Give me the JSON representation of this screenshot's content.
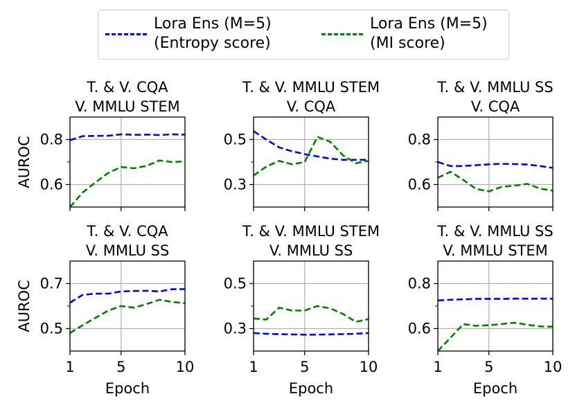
{
  "legend": {
    "entries": [
      {
        "line1": "Lora Ens (M=5)",
        "line2": "(Entropy score)",
        "color": "#0000ff"
      },
      {
        "line1": "Lora Ens (M=5)",
        "line2": "(MI score)",
        "color": "#008000"
      }
    ]
  },
  "chart_data": {
    "type": "line",
    "xlabel": "Epoch",
    "ylabel": "AUROC",
    "xlim": [
      1,
      10
    ],
    "x_ticks": [
      "1",
      "5",
      "10"
    ],
    "panels": [
      {
        "title_line1": "T. & V. CQA",
        "title_line2": "V. MMLU STEM",
        "ylim": [
          0.5,
          0.9
        ],
        "y_ticks": [
          0.6,
          0.8
        ],
        "y_tick_labels": [
          "0.6",
          "0.8"
        ],
        "y_minor": [
          0.7
        ],
        "x": [
          1,
          2,
          3,
          4,
          5,
          6,
          7,
          8,
          9,
          10
        ],
        "series": [
          {
            "color": "#0000ff",
            "values": [
              0.797,
              0.815,
              0.816,
              0.817,
              0.823,
              0.821,
              0.822,
              0.82,
              0.823,
              0.822
            ]
          },
          {
            "color": "#008000",
            "values": [
              0.5,
              0.565,
              0.61,
              0.652,
              0.678,
              0.672,
              0.683,
              0.707,
              0.7,
              0.703
            ]
          }
        ]
      },
      {
        "title_line1": "T. & V. MMLU STEM",
        "title_line2": "V. CQA",
        "ylim": [
          0.2,
          0.6
        ],
        "y_ticks": [
          0.3,
          0.5
        ],
        "y_tick_labels": [
          "0.3",
          "0.5"
        ],
        "y_minor": [
          0.4
        ],
        "x": [
          1,
          2,
          3,
          4,
          5,
          6,
          7,
          8,
          9,
          10
        ],
        "series": [
          {
            "color": "#0000ff",
            "values": [
              0.537,
              0.5,
              0.465,
              0.448,
              0.435,
              0.425,
              0.415,
              0.41,
              0.41,
              0.41
            ]
          },
          {
            "color": "#008000",
            "values": [
              0.34,
              0.38,
              0.405,
              0.39,
              0.4,
              0.512,
              0.49,
              0.43,
              0.395,
              0.405
            ]
          }
        ]
      },
      {
        "title_line1": "T. & V. MMLU SS",
        "title_line2": "V. CQA",
        "ylim": [
          0.5,
          0.9
        ],
        "y_ticks": [
          0.6,
          0.8
        ],
        "y_tick_labels": [
          "0.6",
          "0.8"
        ],
        "y_minor": [
          0.7
        ],
        "x": [
          1,
          2,
          3,
          4,
          5,
          6,
          7,
          8,
          9,
          10
        ],
        "series": [
          {
            "color": "#0000ff",
            "values": [
              0.7,
              0.682,
              0.682,
              0.686,
              0.69,
              0.692,
              0.691,
              0.689,
              0.682,
              0.674
            ]
          },
          {
            "color": "#008000",
            "values": [
              0.63,
              0.657,
              0.62,
              0.58,
              0.57,
              0.59,
              0.595,
              0.603,
              0.582,
              0.573
            ]
          }
        ]
      },
      {
        "title_line1": "T. & V. CQA",
        "title_line2": "V. MMLU SS",
        "ylim": [
          0.4,
          0.8
        ],
        "y_ticks": [
          0.5,
          0.7
        ],
        "y_tick_labels": [
          "0.5",
          "0.7"
        ],
        "y_minor": [
          0.6
        ],
        "x": [
          1,
          2,
          3,
          4,
          5,
          6,
          7,
          8,
          9,
          10
        ],
        "series": [
          {
            "color": "#0000ff",
            "values": [
              0.615,
              0.65,
              0.655,
              0.655,
              0.665,
              0.667,
              0.668,
              0.665,
              0.675,
              0.675
            ]
          },
          {
            "color": "#008000",
            "values": [
              0.48,
              0.515,
              0.548,
              0.58,
              0.6,
              0.593,
              0.609,
              0.628,
              0.618,
              0.613
            ]
          }
        ]
      },
      {
        "title_line1": "T. & V. MMLU STEM",
        "title_line2": "V. MMLU SS",
        "ylim": [
          0.2,
          0.6
        ],
        "y_ticks": [
          0.3,
          0.5
        ],
        "y_tick_labels": [
          "0.3",
          "0.5"
        ],
        "y_minor": [
          0.4
        ],
        "x": [
          1,
          2,
          3,
          4,
          5,
          6,
          7,
          8,
          9,
          10
        ],
        "series": [
          {
            "color": "#0000ff",
            "values": [
              0.28,
              0.277,
              0.275,
              0.274,
              0.273,
              0.273,
              0.274,
              0.275,
              0.277,
              0.28
            ]
          },
          {
            "color": "#008000",
            "values": [
              0.345,
              0.34,
              0.393,
              0.38,
              0.38,
              0.4,
              0.39,
              0.365,
              0.33,
              0.342
            ]
          }
        ]
      },
      {
        "title_line1": "T. & V. MMLU SS",
        "title_line2": "V. MMLU STEM",
        "ylim": [
          0.5,
          0.9
        ],
        "y_ticks": [
          0.6,
          0.8
        ],
        "y_tick_labels": [
          "0.6",
          "0.8"
        ],
        "y_minor": [
          0.7
        ],
        "x": [
          1,
          2,
          3,
          4,
          5,
          6,
          7,
          8,
          9,
          10
        ],
        "series": [
          {
            "color": "#0000ff",
            "values": [
              0.725,
              0.728,
              0.73,
              0.732,
              0.732,
              0.732,
              0.733,
              0.733,
              0.733,
              0.733
            ]
          },
          {
            "color": "#008000",
            "values": [
              0.5,
              0.56,
              0.62,
              0.612,
              0.615,
              0.62,
              0.626,
              0.617,
              0.61,
              0.608
            ]
          }
        ]
      }
    ]
  }
}
